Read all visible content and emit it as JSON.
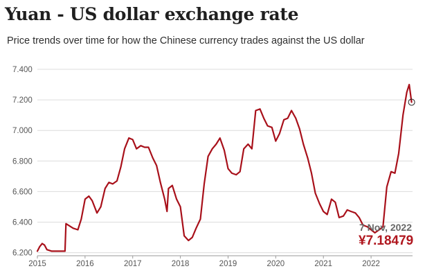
{
  "title": "Yuan - US dollar exchange rate",
  "subtitle": "Price trends over time for how the Chinese currency trades against the US dollar",
  "annotation": {
    "date": "7 Nov, 2022",
    "value": "¥7.18479"
  },
  "colors": {
    "line": "#a8101a",
    "grid": "#dcdcdc",
    "axis": "#9a9a9a",
    "accent": "#b0171f"
  },
  "chart_data": {
    "type": "line",
    "title": "Yuan - US dollar exchange rate",
    "subtitle": "Price trends over time for how the Chinese currency trades against the US dollar",
    "xlabel": "",
    "ylabel": "",
    "xlim": [
      2015.0,
      2022.87
    ],
    "ylim": [
      6.18,
      7.4
    ],
    "grid": true,
    "x_ticks": [
      "2015",
      "2016",
      "2017",
      "2018",
      "2019",
      "2020",
      "2021",
      "2022"
    ],
    "x_tick_values": [
      2015,
      2016,
      2017,
      2018,
      2019,
      2020,
      2021,
      2022
    ],
    "y_ticks": [
      "6.200",
      "6.400",
      "6.600",
      "6.800",
      "7.000",
      "7.200",
      "7.400"
    ],
    "y_tick_values": [
      6.2,
      6.4,
      6.6,
      6.8,
      7.0,
      7.2,
      7.4
    ],
    "series": [
      {
        "points": [
          [
            2015.0,
            6.21
          ],
          [
            2015.05,
            6.24
          ],
          [
            2015.1,
            6.26
          ],
          [
            2015.15,
            6.25
          ],
          [
            2015.2,
            6.22
          ],
          [
            2015.3,
            6.21
          ],
          [
            2015.4,
            6.21
          ],
          [
            2015.5,
            6.21
          ],
          [
            2015.58,
            6.21
          ],
          [
            2015.6,
            6.39
          ],
          [
            2015.65,
            6.38
          ],
          [
            2015.75,
            6.36
          ],
          [
            2015.85,
            6.35
          ],
          [
            2015.92,
            6.42
          ],
          [
            2016.0,
            6.55
          ],
          [
            2016.08,
            6.57
          ],
          [
            2016.15,
            6.54
          ],
          [
            2016.25,
            6.46
          ],
          [
            2016.33,
            6.5
          ],
          [
            2016.42,
            6.62
          ],
          [
            2016.5,
            6.66
          ],
          [
            2016.58,
            6.65
          ],
          [
            2016.67,
            6.67
          ],
          [
            2016.75,
            6.76
          ],
          [
            2016.83,
            6.88
          ],
          [
            2016.92,
            6.95
          ],
          [
            2017.0,
            6.94
          ],
          [
            2017.08,
            6.88
          ],
          [
            2017.17,
            6.9
          ],
          [
            2017.25,
            6.89
          ],
          [
            2017.33,
            6.89
          ],
          [
            2017.42,
            6.82
          ],
          [
            2017.5,
            6.77
          ],
          [
            2017.58,
            6.66
          ],
          [
            2017.67,
            6.55
          ],
          [
            2017.72,
            6.47
          ],
          [
            2017.75,
            6.62
          ],
          [
            2017.83,
            6.64
          ],
          [
            2017.92,
            6.55
          ],
          [
            2018.0,
            6.5
          ],
          [
            2018.08,
            6.31
          ],
          [
            2018.17,
            6.28
          ],
          [
            2018.25,
            6.3
          ],
          [
            2018.33,
            6.36
          ],
          [
            2018.42,
            6.42
          ],
          [
            2018.5,
            6.65
          ],
          [
            2018.58,
            6.83
          ],
          [
            2018.67,
            6.88
          ],
          [
            2018.75,
            6.91
          ],
          [
            2018.83,
            6.95
          ],
          [
            2018.92,
            6.87
          ],
          [
            2019.0,
            6.75
          ],
          [
            2019.08,
            6.72
          ],
          [
            2019.17,
            6.71
          ],
          [
            2019.25,
            6.73
          ],
          [
            2019.33,
            6.88
          ],
          [
            2019.42,
            6.91
          ],
          [
            2019.5,
            6.88
          ],
          [
            2019.58,
            7.13
          ],
          [
            2019.67,
            7.14
          ],
          [
            2019.75,
            7.08
          ],
          [
            2019.83,
            7.03
          ],
          [
            2019.92,
            7.02
          ],
          [
            2020.0,
            6.93
          ],
          [
            2020.08,
            6.98
          ],
          [
            2020.17,
            7.07
          ],
          [
            2020.25,
            7.08
          ],
          [
            2020.33,
            7.13
          ],
          [
            2020.42,
            7.08
          ],
          [
            2020.5,
            7.01
          ],
          [
            2020.58,
            6.91
          ],
          [
            2020.67,
            6.82
          ],
          [
            2020.75,
            6.72
          ],
          [
            2020.83,
            6.59
          ],
          [
            2020.92,
            6.52
          ],
          [
            2021.0,
            6.47
          ],
          [
            2021.08,
            6.45
          ],
          [
            2021.17,
            6.55
          ],
          [
            2021.25,
            6.53
          ],
          [
            2021.33,
            6.43
          ],
          [
            2021.42,
            6.44
          ],
          [
            2021.5,
            6.48
          ],
          [
            2021.58,
            6.47
          ],
          [
            2021.67,
            6.46
          ],
          [
            2021.75,
            6.43
          ],
          [
            2021.83,
            6.38
          ],
          [
            2021.92,
            6.37
          ],
          [
            2022.0,
            6.35
          ],
          [
            2022.08,
            6.33
          ],
          [
            2022.17,
            6.35
          ],
          [
            2022.25,
            6.37
          ],
          [
            2022.33,
            6.63
          ],
          [
            2022.42,
            6.73
          ],
          [
            2022.5,
            6.72
          ],
          [
            2022.58,
            6.85
          ],
          [
            2022.67,
            7.1
          ],
          [
            2022.75,
            7.25
          ],
          [
            2022.8,
            7.3
          ],
          [
            2022.85,
            7.185
          ]
        ],
        "color": "#a8101a"
      }
    ],
    "marker": {
      "x": 2022.85,
      "y": 7.18479
    }
  }
}
